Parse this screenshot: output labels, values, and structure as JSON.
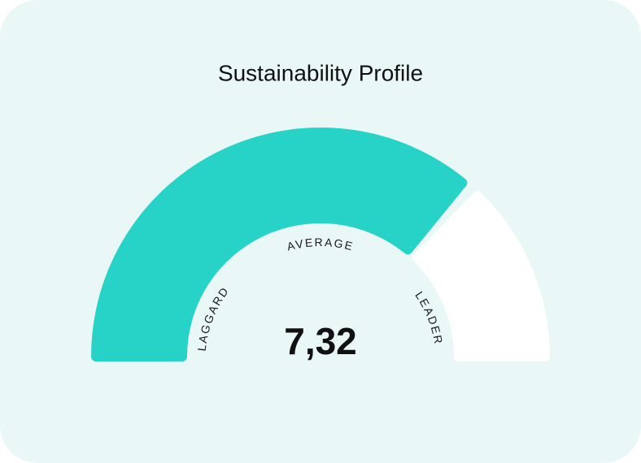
{
  "chart_data": {
    "type": "gauge",
    "title": "Sustainability Profile",
    "value": 7.32,
    "value_label": "7,32",
    "ylim": [
      0,
      10
    ],
    "zone_labels": [
      "LAGGARD",
      "AVERAGE",
      "LEADER"
    ],
    "color": "#26d3c6",
    "track_color": "#ffffff"
  }
}
